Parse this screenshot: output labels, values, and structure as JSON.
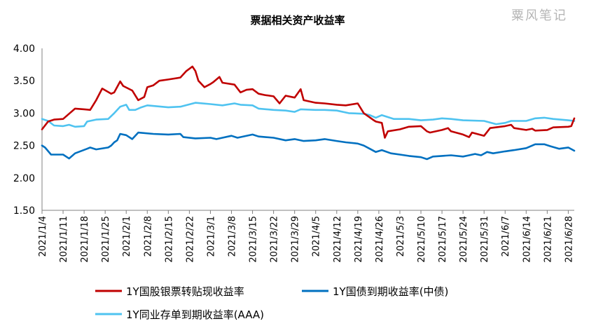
{
  "watermark": "粟风笔记",
  "chart_data": {
    "type": "line",
    "title": "票据相关资产收益率",
    "xlabel": "",
    "ylabel": "",
    "ylim": [
      1.5,
      4.0
    ],
    "yticks": [
      "1.50",
      "2.00",
      "2.50",
      "3.00",
      "3.50",
      "4.00"
    ],
    "xlim": [
      "2021-01-04",
      "2021-06-30"
    ],
    "xtick_dates": [
      "2021-01-04",
      "2021-01-11",
      "2021-01-18",
      "2021-01-25",
      "2021-02-01",
      "2021-02-08",
      "2021-02-15",
      "2021-02-22",
      "2021-03-01",
      "2021-03-08",
      "2021-03-15",
      "2021-03-22",
      "2021-03-29",
      "2021-04-05",
      "2021-04-12",
      "2021-04-19",
      "2021-04-26",
      "2021-05-03",
      "2021-05-10",
      "2021-05-17",
      "2021-05-24",
      "2021-05-31",
      "2021-06-07",
      "2021-06-14",
      "2021-06-21",
      "2021-06-28"
    ],
    "xtick_labels": [
      "2021/1/4",
      "2021/1/11",
      "2021/1/18",
      "2021/1/25",
      "2021/2/1",
      "2021/2/8",
      "2021/2/15",
      "2021/2/22",
      "2021/3/1",
      "2021/3/8",
      "2021/3/15",
      "2021/3/22",
      "2021/3/29",
      "2021/4/5",
      "2021/4/12",
      "2021/4/19",
      "2021/4/26",
      "2021/5/3",
      "2021/5/10",
      "2021/5/17",
      "2021/5/24",
      "2021/5/31",
      "2021/6/7",
      "2021/6/14",
      "2021/6/21",
      "2021/6/28"
    ],
    "grid": false,
    "legend_position": "bottom",
    "series": [
      {
        "name": "1Y国股银票转贴现收益率",
        "color": "#C00000",
        "points": [
          [
            "2021-01-04",
            2.75
          ],
          [
            "2021-01-06",
            2.87
          ],
          [
            "2021-01-08",
            2.9
          ],
          [
            "2021-01-11",
            2.91
          ],
          [
            "2021-01-13",
            2.99
          ],
          [
            "2021-01-15",
            3.07
          ],
          [
            "2021-01-18",
            3.06
          ],
          [
            "2021-01-20",
            3.05
          ],
          [
            "2021-01-22",
            3.2
          ],
          [
            "2021-01-24",
            3.38
          ],
          [
            "2021-01-27",
            3.3
          ],
          [
            "2021-01-28",
            3.32
          ],
          [
            "2021-01-30",
            3.49
          ],
          [
            "2021-01-31",
            3.42
          ],
          [
            "2021-02-03",
            3.35
          ],
          [
            "2021-02-05",
            3.2
          ],
          [
            "2021-02-07",
            3.25
          ],
          [
            "2021-02-08",
            3.4
          ],
          [
            "2021-02-10",
            3.43
          ],
          [
            "2021-02-12",
            3.5
          ],
          [
            "2021-02-15",
            3.52
          ],
          [
            "2021-02-19",
            3.55
          ],
          [
            "2021-02-21",
            3.65
          ],
          [
            "2021-02-23",
            3.72
          ],
          [
            "2021-02-24",
            3.65
          ],
          [
            "2021-02-25",
            3.5
          ],
          [
            "2021-02-27",
            3.4
          ],
          [
            "2021-03-01",
            3.45
          ],
          [
            "2021-03-02",
            3.48
          ],
          [
            "2021-03-04",
            3.56
          ],
          [
            "2021-03-05",
            3.47
          ],
          [
            "2021-03-09",
            3.44
          ],
          [
            "2021-03-11",
            3.32
          ],
          [
            "2021-03-13",
            3.36
          ],
          [
            "2021-03-15",
            3.37
          ],
          [
            "2021-03-17",
            3.3
          ],
          [
            "2021-03-19",
            3.28
          ],
          [
            "2021-03-22",
            3.26
          ],
          [
            "2021-03-24",
            3.15
          ],
          [
            "2021-03-26",
            3.27
          ],
          [
            "2021-03-29",
            3.24
          ],
          [
            "2021-03-31",
            3.37
          ],
          [
            "2021-04-01",
            3.2
          ],
          [
            "2021-04-05",
            3.16
          ],
          [
            "2021-04-08",
            3.15
          ],
          [
            "2021-04-12",
            3.13
          ],
          [
            "2021-04-15",
            3.12
          ],
          [
            "2021-04-19",
            3.15
          ],
          [
            "2021-04-21",
            3.0
          ],
          [
            "2021-04-24",
            2.9
          ],
          [
            "2021-04-25",
            2.87
          ],
          [
            "2021-04-27",
            2.85
          ],
          [
            "2021-04-28",
            2.62
          ],
          [
            "2021-04-29",
            2.72
          ],
          [
            "2021-05-03",
            2.75
          ],
          [
            "2021-05-06",
            2.79
          ],
          [
            "2021-05-10",
            2.8
          ],
          [
            "2021-05-12",
            2.72
          ],
          [
            "2021-05-13",
            2.7
          ],
          [
            "2021-05-17",
            2.74
          ],
          [
            "2021-05-19",
            2.77
          ],
          [
            "2021-05-20",
            2.72
          ],
          [
            "2021-05-24",
            2.67
          ],
          [
            "2021-05-26",
            2.63
          ],
          [
            "2021-05-27",
            2.7
          ],
          [
            "2021-05-31",
            2.65
          ],
          [
            "2021-06-02",
            2.77
          ],
          [
            "2021-06-07",
            2.8
          ],
          [
            "2021-06-09",
            2.82
          ],
          [
            "2021-06-10",
            2.77
          ],
          [
            "2021-06-14",
            2.74
          ],
          [
            "2021-06-16",
            2.76
          ],
          [
            "2021-06-17",
            2.73
          ],
          [
            "2021-06-21",
            2.74
          ],
          [
            "2021-06-23",
            2.78
          ],
          [
            "2021-06-28",
            2.79
          ],
          [
            "2021-06-29",
            2.8
          ],
          [
            "2021-06-30",
            2.92
          ]
        ]
      },
      {
        "name": "1Y国债到期收益率(中债)",
        "color": "#0070C0",
        "points": [
          [
            "2021-01-04",
            2.5
          ],
          [
            "2021-01-05",
            2.47
          ],
          [
            "2021-01-07",
            2.36
          ],
          [
            "2021-01-11",
            2.36
          ],
          [
            "2021-01-12",
            2.33
          ],
          [
            "2021-01-13",
            2.3
          ],
          [
            "2021-01-15",
            2.38
          ],
          [
            "2021-01-19",
            2.45
          ],
          [
            "2021-01-20",
            2.47
          ],
          [
            "2021-01-22",
            2.44
          ],
          [
            "2021-01-26",
            2.47
          ],
          [
            "2021-01-27",
            2.5
          ],
          [
            "2021-01-28",
            2.55
          ],
          [
            "2021-01-29",
            2.58
          ],
          [
            "2021-01-30",
            2.68
          ],
          [
            "2021-02-01",
            2.66
          ],
          [
            "2021-02-03",
            2.6
          ],
          [
            "2021-02-05",
            2.7
          ],
          [
            "2021-02-10",
            2.68
          ],
          [
            "2021-02-15",
            2.67
          ],
          [
            "2021-02-19",
            2.68
          ],
          [
            "2021-02-20",
            2.63
          ],
          [
            "2021-02-24",
            2.61
          ],
          [
            "2021-03-01",
            2.62
          ],
          [
            "2021-03-03",
            2.6
          ],
          [
            "2021-03-05",
            2.62
          ],
          [
            "2021-03-08",
            2.65
          ],
          [
            "2021-03-10",
            2.62
          ],
          [
            "2021-03-15",
            2.67
          ],
          [
            "2021-03-17",
            2.64
          ],
          [
            "2021-03-22",
            2.62
          ],
          [
            "2021-03-26",
            2.58
          ],
          [
            "2021-03-29",
            2.6
          ],
          [
            "2021-04-01",
            2.57
          ],
          [
            "2021-04-05",
            2.58
          ],
          [
            "2021-04-08",
            2.6
          ],
          [
            "2021-04-12",
            2.57
          ],
          [
            "2021-04-15",
            2.55
          ],
          [
            "2021-04-19",
            2.53
          ],
          [
            "2021-04-21",
            2.5
          ],
          [
            "2021-04-23",
            2.45
          ],
          [
            "2021-04-25",
            2.4
          ],
          [
            "2021-04-27",
            2.43
          ],
          [
            "2021-04-30",
            2.38
          ],
          [
            "2021-05-03",
            2.36
          ],
          [
            "2021-05-06",
            2.34
          ],
          [
            "2021-05-10",
            2.32
          ],
          [
            "2021-05-12",
            2.29
          ],
          [
            "2021-05-14",
            2.33
          ],
          [
            "2021-05-17",
            2.34
          ],
          [
            "2021-05-20",
            2.35
          ],
          [
            "2021-05-24",
            2.33
          ],
          [
            "2021-05-26",
            2.35
          ],
          [
            "2021-05-28",
            2.37
          ],
          [
            "2021-05-30",
            2.35
          ],
          [
            "2021-06-01",
            2.4
          ],
          [
            "2021-06-03",
            2.38
          ],
          [
            "2021-06-07",
            2.41
          ],
          [
            "2021-06-10",
            2.43
          ],
          [
            "2021-06-14",
            2.46
          ],
          [
            "2021-06-17",
            2.52
          ],
          [
            "2021-06-20",
            2.52
          ],
          [
            "2021-06-22",
            2.49
          ],
          [
            "2021-06-25",
            2.45
          ],
          [
            "2021-06-28",
            2.47
          ],
          [
            "2021-06-30",
            2.42
          ]
        ]
      },
      {
        "name": "1Y同业存单到期收益率(AAA)",
        "color": "#4FC3F0",
        "points": [
          [
            "2021-01-04",
            2.91
          ],
          [
            "2021-01-06",
            2.88
          ],
          [
            "2021-01-08",
            2.81
          ],
          [
            "2021-01-11",
            2.8
          ],
          [
            "2021-01-13",
            2.82
          ],
          [
            "2021-01-15",
            2.79
          ],
          [
            "2021-01-18",
            2.8
          ],
          [
            "2021-01-19",
            2.87
          ],
          [
            "2021-01-22",
            2.9
          ],
          [
            "2021-01-26",
            2.91
          ],
          [
            "2021-01-28",
            3.0
          ],
          [
            "2021-01-30",
            3.1
          ],
          [
            "2021-02-01",
            3.13
          ],
          [
            "2021-02-02",
            3.05
          ],
          [
            "2021-02-04",
            3.05
          ],
          [
            "2021-02-06",
            3.09
          ],
          [
            "2021-02-08",
            3.12
          ],
          [
            "2021-02-15",
            3.09
          ],
          [
            "2021-02-19",
            3.1
          ],
          [
            "2021-02-24",
            3.16
          ],
          [
            "2021-03-01",
            3.14
          ],
          [
            "2021-03-05",
            3.12
          ],
          [
            "2021-03-09",
            3.15
          ],
          [
            "2021-03-11",
            3.13
          ],
          [
            "2021-03-15",
            3.12
          ],
          [
            "2021-03-17",
            3.07
          ],
          [
            "2021-03-22",
            3.05
          ],
          [
            "2021-03-26",
            3.04
          ],
          [
            "2021-03-29",
            3.02
          ],
          [
            "2021-03-31",
            3.06
          ],
          [
            "2021-04-05",
            3.05
          ],
          [
            "2021-04-08",
            3.05
          ],
          [
            "2021-04-12",
            3.04
          ],
          [
            "2021-04-16",
            3.0
          ],
          [
            "2021-04-21",
            2.99
          ],
          [
            "2021-04-23",
            2.97
          ],
          [
            "2021-04-25",
            2.93
          ],
          [
            "2021-04-27",
            2.97
          ],
          [
            "2021-05-01",
            2.91
          ],
          [
            "2021-05-06",
            2.91
          ],
          [
            "2021-05-10",
            2.89
          ],
          [
            "2021-05-14",
            2.9
          ],
          [
            "2021-05-17",
            2.92
          ],
          [
            "2021-05-20",
            2.91
          ],
          [
            "2021-05-24",
            2.89
          ],
          [
            "2021-05-31",
            2.88
          ],
          [
            "2021-06-04",
            2.83
          ],
          [
            "2021-06-07",
            2.85
          ],
          [
            "2021-06-09",
            2.88
          ],
          [
            "2021-06-14",
            2.88
          ],
          [
            "2021-06-17",
            2.92
          ],
          [
            "2021-06-20",
            2.93
          ],
          [
            "2021-06-23",
            2.91
          ],
          [
            "2021-06-28",
            2.89
          ],
          [
            "2021-06-30",
            2.88
          ]
        ]
      }
    ]
  }
}
